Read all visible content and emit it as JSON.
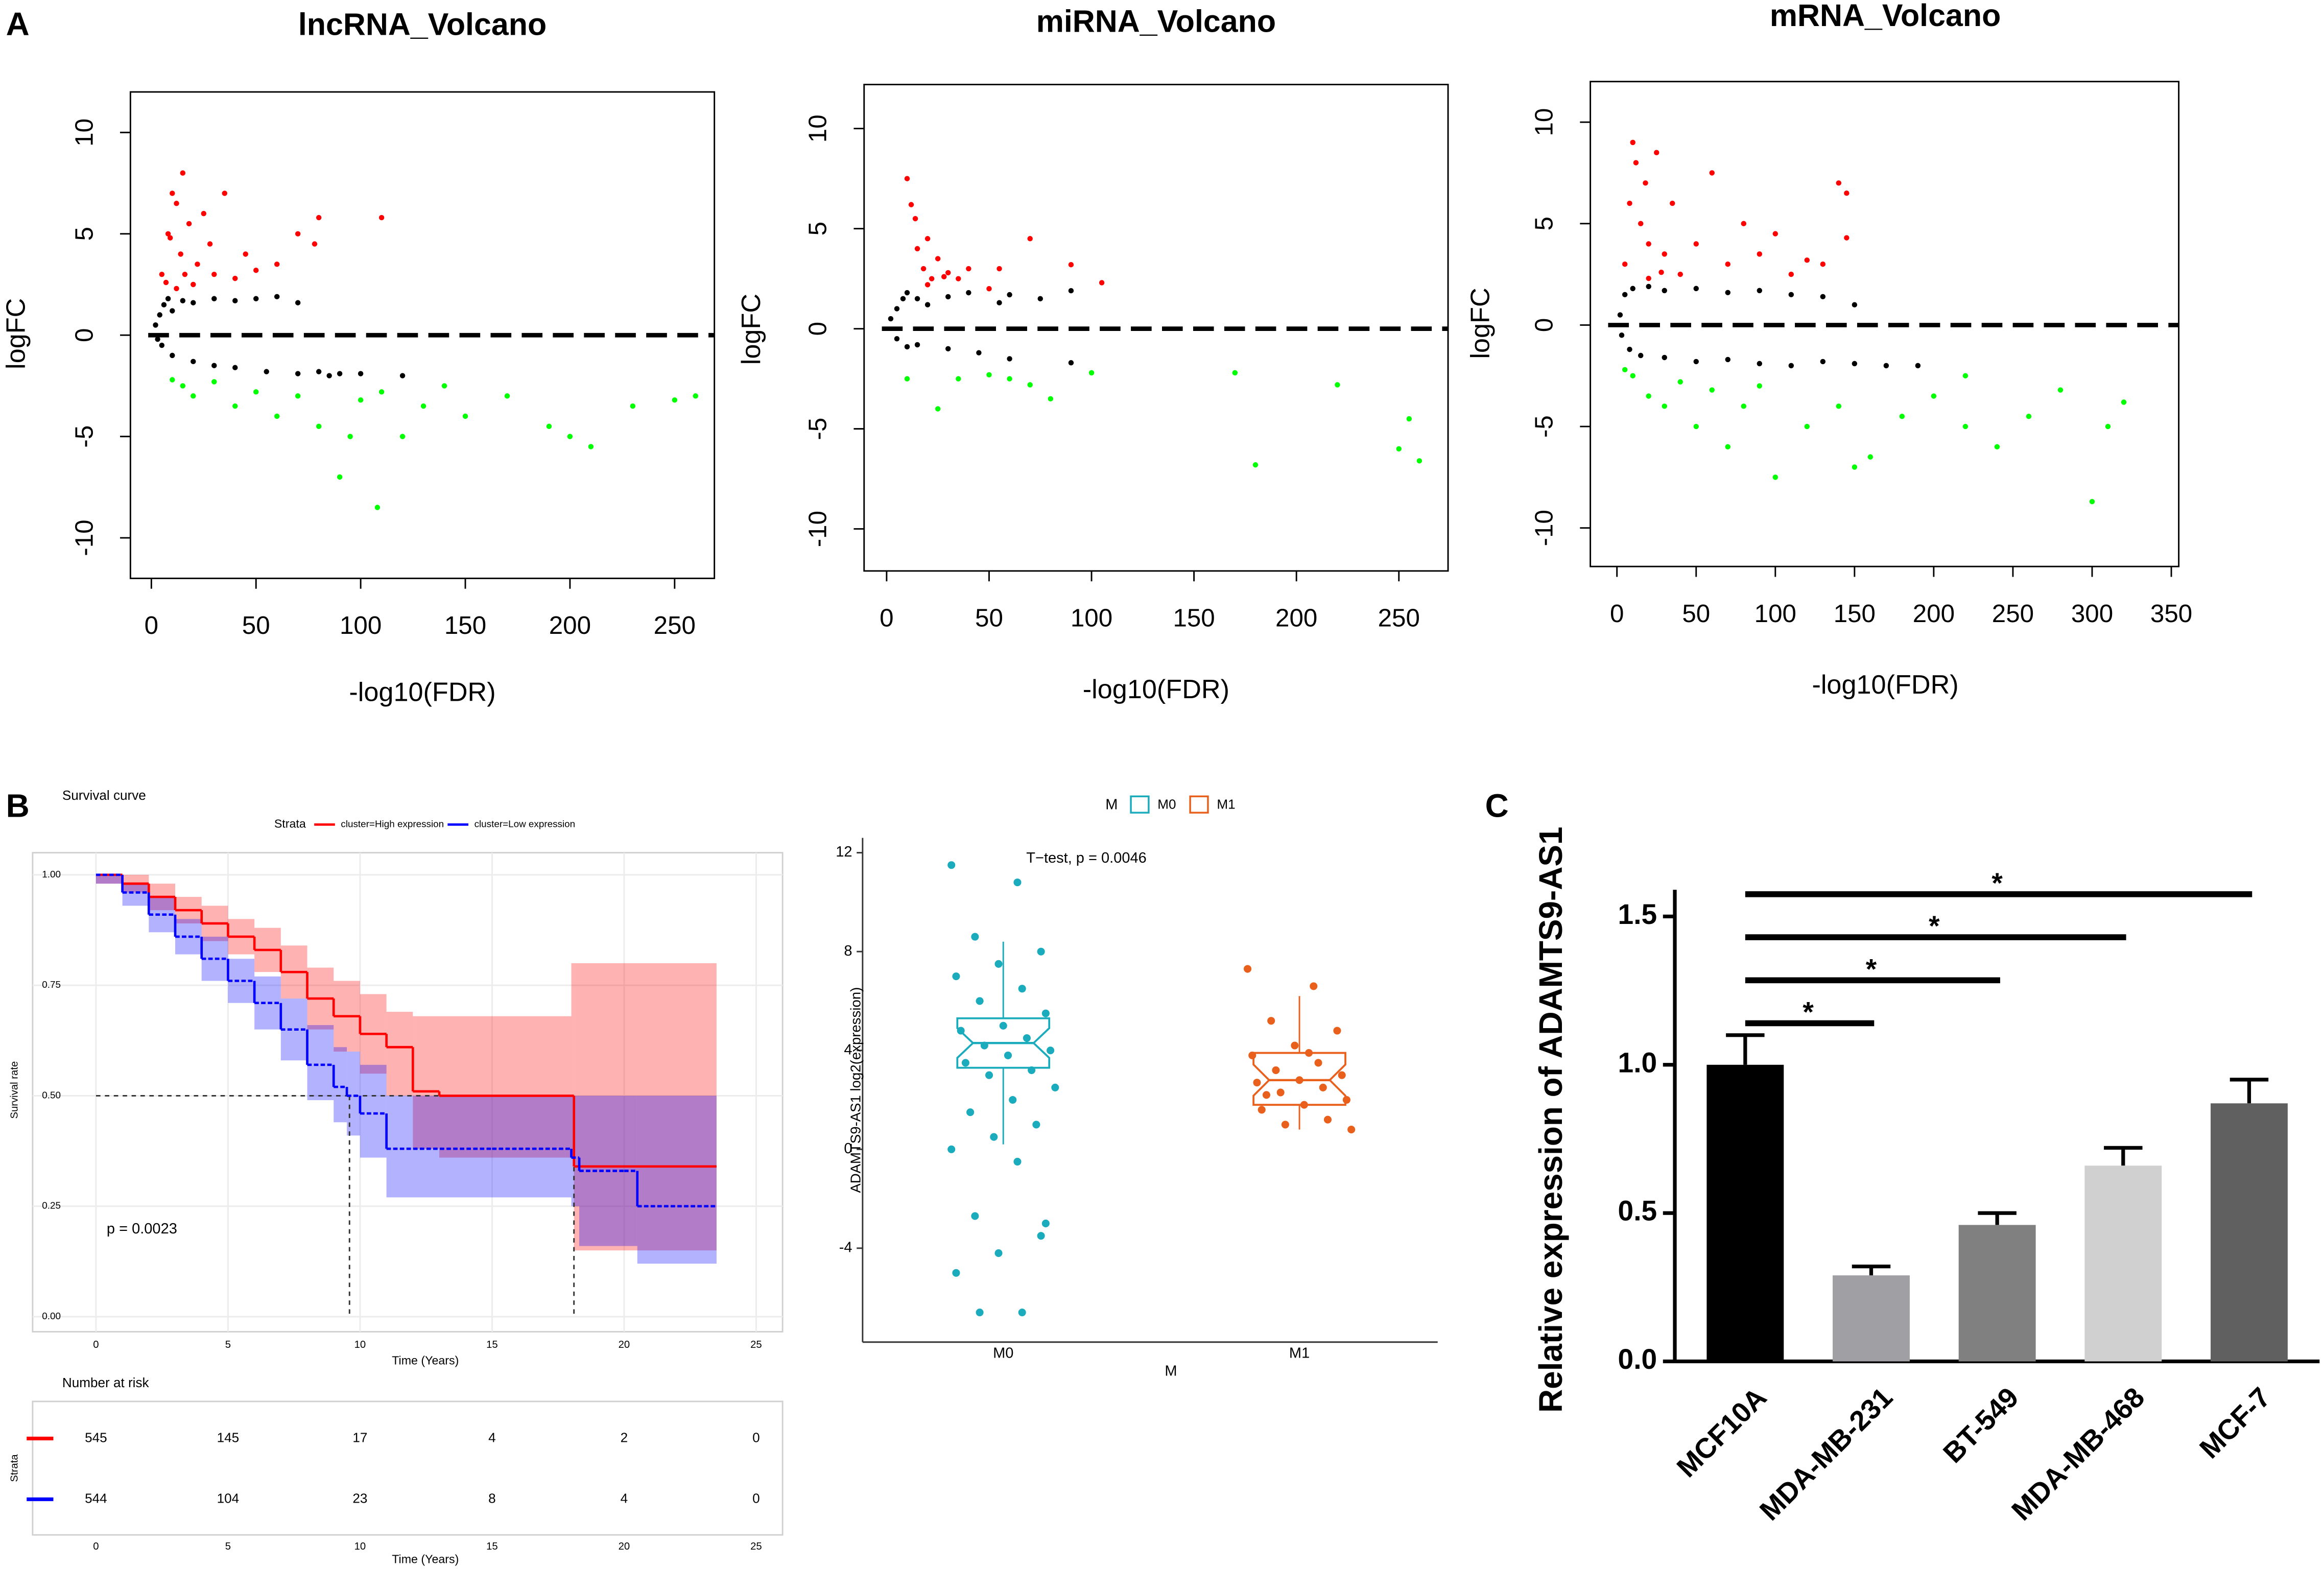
{
  "panel_labels": [
    "A",
    "B",
    "C"
  ],
  "chart_data": [
    {
      "type": "scatter",
      "title": "lncRNA_Volcano",
      "x_label": "-log10(FDR)",
      "y_label": "logFC",
      "xlim": [
        -10,
        269
      ],
      "ylim": [
        -12,
        12
      ],
      "xticks": [
        0,
        50,
        100,
        150,
        200,
        250
      ],
      "yticks": [
        -10,
        -5,
        0,
        5,
        10
      ],
      "hline": 0,
      "series": [
        {
          "color": "#ff0000",
          "x": [
            5,
            8,
            10,
            12,
            14,
            15,
            18,
            20,
            22,
            25,
            28,
            30,
            35,
            40,
            45,
            50,
            60,
            70,
            78,
            80,
            110,
            12,
            16,
            9,
            7
          ],
          "values": [
            3,
            5,
            7,
            6.5,
            4,
            8,
            5.5,
            2.5,
            3.5,
            6,
            4.5,
            3,
            7,
            2.8,
            4,
            3.2,
            3.5,
            5,
            4.5,
            5.8,
            5.8,
            2.3,
            3,
            4.8,
            2.6
          ]
        },
        {
          "color": "#00ff00",
          "x": [
            10,
            15,
            20,
            30,
            40,
            50,
            60,
            70,
            80,
            90,
            100,
            110,
            120,
            130,
            150,
            170,
            190,
            200,
            210,
            230,
            250,
            260,
            108,
            95,
            140
          ],
          "values": [
            -2.2,
            -2.5,
            -3,
            -2.3,
            -3.5,
            -2.8,
            -4,
            -3,
            -4.5,
            -7,
            -3.2,
            -2.8,
            -5,
            -3.5,
            -4,
            -3,
            -4.5,
            -5,
            -5.5,
            -3.5,
            -3.2,
            -3,
            -8.5,
            -5,
            -2.5
          ]
        },
        {
          "color": "#000000",
          "x": [
            2,
            4,
            6,
            8,
            10,
            15,
            20,
            30,
            40,
            50,
            60,
            70,
            80,
            90,
            100,
            120,
            5,
            10,
            20,
            30,
            40,
            55,
            70,
            85,
            3
          ],
          "values": [
            0.5,
            1,
            1.5,
            1.8,
            1.2,
            1.7,
            1.6,
            1.8,
            1.7,
            1.8,
            1.9,
            1.6,
            -1.8,
            -1.9,
            -1.9,
            -2,
            -0.5,
            -1,
            -1.3,
            -1.5,
            -1.6,
            -1.8,
            -1.9,
            -2,
            -0.2
          ]
        }
      ]
    },
    {
      "type": "scatter",
      "title": "miRNA_Volcano",
      "x_label": "-log10(FDR)",
      "y_label": "logFC",
      "xlim": [
        -11,
        274
      ],
      "ylim": [
        -12.1,
        12.2
      ],
      "xticks": [
        0,
        50,
        100,
        150,
        200,
        250
      ],
      "yticks": [
        -10,
        -5,
        0,
        5,
        10
      ],
      "hline": 0,
      "series": [
        {
          "color": "#ff0000",
          "x": [
            10,
            12,
            14,
            15,
            18,
            20,
            22,
            25,
            30,
            35,
            40,
            50,
            55,
            70,
            90,
            105,
            20,
            28
          ],
          "values": [
            7.5,
            6.2,
            5.5,
            4,
            3,
            4.5,
            2.5,
            3.5,
            2.8,
            2.5,
            3,
            2,
            3,
            4.5,
            3.2,
            2.3,
            2.2,
            2.6
          ]
        },
        {
          "color": "#00ff00",
          "x": [
            10,
            25,
            35,
            50,
            60,
            70,
            80,
            100,
            170,
            180,
            220,
            250,
            255,
            260
          ],
          "values": [
            -2.5,
            -4,
            -2.5,
            -2.3,
            -2.5,
            -2.8,
            -3.5,
            -2.2,
            -2.2,
            -6.8,
            -2.8,
            -6,
            -4.5,
            -6.6
          ]
        },
        {
          "color": "#000000",
          "x": [
            2,
            5,
            8,
            10,
            15,
            20,
            30,
            40,
            55,
            60,
            75,
            90,
            5,
            10,
            15,
            30,
            45,
            60,
            90
          ],
          "values": [
            0.5,
            1,
            1.5,
            1.8,
            1.5,
            1.2,
            1.6,
            1.8,
            1.3,
            1.7,
            1.5,
            1.9,
            -0.5,
            -0.9,
            -0.8,
            -1,
            -1.2,
            -1.5,
            -1.7
          ]
        }
      ]
    },
    {
      "type": "scatter",
      "title": "mRNA_Volcano",
      "x_label": "-log10(FDR)",
      "y_label": "logFC",
      "xlim": [
        -16.8,
        354.7
      ],
      "ylim": [
        -11.9,
        12
      ],
      "xticks": [
        0,
        50,
        100,
        150,
        200,
        250,
        300,
        350
      ],
      "yticks": [
        -10,
        -5,
        0,
        5,
        10
      ],
      "hline": 0,
      "series": [
        {
          "color": "#ff0000",
          "x": [
            5,
            8,
            10,
            12,
            15,
            18,
            20,
            25,
            30,
            35,
            40,
            50,
            60,
            70,
            80,
            90,
            100,
            110,
            120,
            140,
            145,
            145,
            130,
            20,
            28
          ],
          "values": [
            3,
            6,
            9,
            8,
            5,
            7,
            4,
            8.5,
            3.5,
            6,
            2.5,
            4,
            7.5,
            3,
            5,
            3.5,
            4.5,
            2.5,
            3.2,
            7,
            6.5,
            4.3,
            3,
            2.3,
            2.6
          ]
        },
        {
          "color": "#00ff00",
          "x": [
            5,
            10,
            20,
            30,
            40,
            50,
            60,
            70,
            80,
            90,
            100,
            120,
            140,
            160,
            180,
            200,
            220,
            240,
            260,
            280,
            300,
            310,
            320,
            150,
            220
          ],
          "values": [
            -2.2,
            -2.5,
            -3.5,
            -4,
            -2.8,
            -5,
            -3.2,
            -6,
            -4,
            -3,
            -7.5,
            -5,
            -4,
            -6.5,
            -4.5,
            -3.5,
            -5,
            -6,
            -4.5,
            -3.2,
            -8.7,
            -5,
            -3.8,
            -7,
            -2.5
          ]
        },
        {
          "color": "#000000",
          "x": [
            2,
            5,
            10,
            20,
            30,
            50,
            70,
            90,
            110,
            130,
            150,
            3,
            8,
            15,
            30,
            50,
            70,
            90,
            110,
            130,
            150,
            170,
            190
          ],
          "values": [
            0.5,
            1.5,
            1.8,
            1.9,
            1.7,
            1.8,
            1.6,
            1.7,
            1.5,
            1.4,
            1,
            -0.5,
            -1.2,
            -1.5,
            -1.6,
            -1.8,
            -1.7,
            -1.9,
            -2,
            -1.8,
            -1.9,
            -2,
            -2
          ]
        }
      ]
    },
    {
      "type": "survival",
      "title": "Survival curve",
      "legend_title": "Strata",
      "x_label": "Time (Years)",
      "y_label": "Survival rate",
      "xlim": [
        -2.4,
        26
      ],
      "ylim": [
        -0.034,
        1.05
      ],
      "xticks": [
        0,
        5,
        10,
        15,
        20,
        25
      ],
      "yticks": [
        {
          "value": 0,
          "label": "0.00"
        },
        {
          "value": 0.25,
          "label": "0.25"
        },
        {
          "value": 0.5,
          "label": "0.50"
        },
        {
          "value": 0.75,
          "label": "0.75"
        },
        {
          "value": 1,
          "label": "1.00"
        }
      ],
      "annotation": "p = 0.0023",
      "median_level": 0.5,
      "medians": [
        9.6,
        18.1
      ],
      "series": [
        {
          "name": "cluster=High expression",
          "color": "#ff0000",
          "x": [
            0,
            1,
            2,
            3,
            4,
            5,
            6,
            7,
            8,
            9,
            10,
            11,
            12,
            13,
            18,
            18.1,
            23.5
          ],
          "values": [
            1,
            0.98,
            0.95,
            0.92,
            0.89,
            0.86,
            0.83,
            0.78,
            0.72,
            0.68,
            0.64,
            0.61,
            0.51,
            0.5,
            0.5,
            0.34,
            0.34
          ],
          "lower": [
            0.98,
            0.96,
            0.92,
            0.89,
            0.85,
            0.82,
            0.78,
            0.72,
            0.65,
            0.6,
            0.55,
            0.5,
            0.38,
            0.36,
            0.36,
            0.15,
            0.15
          ],
          "upper": [
            1,
            1,
            0.98,
            0.95,
            0.93,
            0.9,
            0.88,
            0.84,
            0.79,
            0.76,
            0.73,
            0.69,
            0.68,
            0.68,
            0.8,
            0.8,
            0.8
          ]
        },
        {
          "name": "cluster=Low expression",
          "color": "#0000ff",
          "x": [
            0,
            1,
            2,
            3,
            4,
            5,
            6,
            7,
            8,
            9,
            9.5,
            10,
            11,
            15,
            18,
            18.3,
            20,
            20.5,
            23.5
          ],
          "values": [
            1,
            0.96,
            0.91,
            0.86,
            0.81,
            0.76,
            0.71,
            0.65,
            0.57,
            0.52,
            0.5,
            0.46,
            0.38,
            0.38,
            0.36,
            0.33,
            0.33,
            0.25,
            0.25
          ],
          "lower": [
            0.98,
            0.93,
            0.87,
            0.82,
            0.76,
            0.71,
            0.65,
            0.58,
            0.49,
            0.44,
            0.41,
            0.36,
            0.27,
            0.27,
            0.25,
            0.16,
            0.16,
            0.12,
            0.12
          ],
          "upper": [
            1,
            0.98,
            0.95,
            0.9,
            0.86,
            0.81,
            0.77,
            0.72,
            0.66,
            0.61,
            0.6,
            0.57,
            0.5,
            0.5,
            0.5,
            0.5,
            0.5,
            0.5,
            0.5
          ]
        }
      ],
      "risk_table": {
        "title": "Number at risk",
        "x_label": "Time (Years)",
        "y_label": "Strata",
        "times": [
          0,
          5,
          10,
          15,
          20,
          25
        ],
        "rows": [
          {
            "color": "#ff0000",
            "values": [
              545,
              145,
              17,
              4,
              2,
              0
            ]
          },
          {
            "color": "#0000ff",
            "values": [
              544,
              104,
              23,
              8,
              4,
              0
            ]
          }
        ]
      }
    },
    {
      "type": "box",
      "legend_title": "M",
      "x_label": "M",
      "y_label": "ADAMTS9-AS1  log2(expression)",
      "annotation": "T−test, p = 0.0046",
      "ylim": [
        -7.8,
        12.6
      ],
      "yticks": [
        -4,
        0,
        4,
        8,
        12
      ],
      "groups": [
        {
          "name": "M0",
          "color": "#1aabbd",
          "q1": 3.3,
          "median": 4.3,
          "q3": 5.3,
          "whisker_low": 0.2,
          "whisker_high": 8.4,
          "points": [
            11.5,
            10.8,
            8.6,
            8,
            7.5,
            7,
            6.5,
            6,
            5.5,
            5,
            4.8,
            4.5,
            4.2,
            4,
            3.8,
            3.5,
            3.2,
            3,
            2.5,
            2,
            1.5,
            1,
            0.5,
            0,
            -0.5,
            -2.7,
            -3.5,
            -4.2,
            -5,
            -6.6,
            -6.6,
            -3
          ]
        },
        {
          "name": "M1",
          "color": "#e8601c",
          "q1": 1.8,
          "median": 2.8,
          "q3": 3.9,
          "whisker_low": 0.8,
          "whisker_high": 6.2,
          "points": [
            7.3,
            6.6,
            5.2,
            4.8,
            4.2,
            3.8,
            3.5,
            3.2,
            3,
            2.8,
            2.7,
            2.5,
            2.3,
            2,
            1.8,
            1.6,
            1.2,
            1,
            0.8,
            3.9,
            2.2
          ]
        }
      ]
    },
    {
      "type": "bar",
      "y_label": "Relative expression of ADAMTS9-AS1",
      "categories": [
        "MCF10A",
        "MDA-MB-231",
        "BT-549",
        "MDA-MB-468",
        "MCF-7"
      ],
      "values": [
        1.0,
        0.29,
        0.46,
        0.66,
        0.87
      ],
      "errors": [
        0.1,
        0.03,
        0.04,
        0.06,
        0.08
      ],
      "colors": [
        "#000000",
        "#a0a0a4",
        "#808080",
        "#d0d0d0",
        "#606060"
      ],
      "ylim": [
        0,
        1.59
      ],
      "yticks": [
        {
          "value": 0,
          "label": "0.0"
        },
        {
          "value": 0.5,
          "label": "0.5"
        },
        {
          "value": 1,
          "label": "1.0"
        },
        {
          "value": 1.5,
          "label": "1.5"
        }
      ],
      "comparisons": [
        {
          "pair": [
            0,
            1
          ],
          "label": "*"
        },
        {
          "pair": [
            0,
            2
          ],
          "label": "*"
        },
        {
          "pair": [
            0,
            3
          ],
          "label": "*"
        },
        {
          "pair": [
            0,
            4
          ],
          "label": "*"
        }
      ]
    }
  ]
}
